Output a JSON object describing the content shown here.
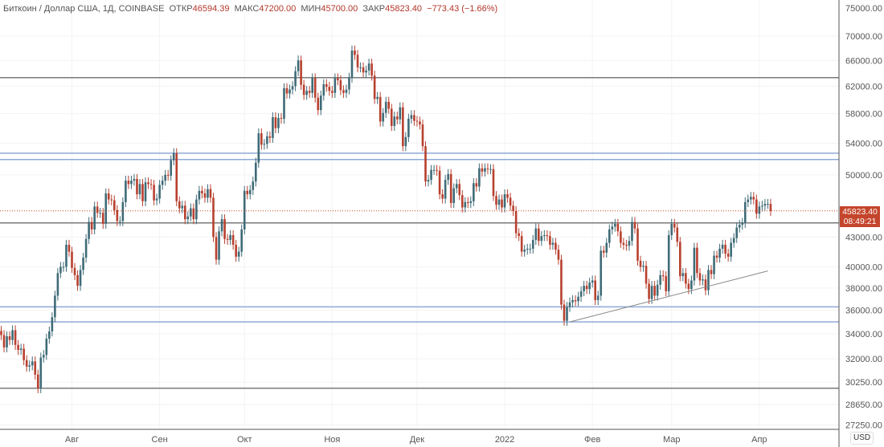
{
  "header": {
    "symbol": "Биткоин / Доллар США, 1Д, COINBASE",
    "open_label": "ОТКР",
    "open": "46594.39",
    "high_label": "МАКС",
    "high": "47200.00",
    "low_label": "МИН",
    "low": "45700.00",
    "close_label": "ЗАКР",
    "close": "45823.40",
    "change": "−773.43 (−1.66%)"
  },
  "currency": "USD",
  "last_price": {
    "value": "45823.40",
    "countdown": "08:49:21"
  },
  "colors": {
    "up": "#3f6b77",
    "down": "#b8402f",
    "last": "#c4452c",
    "hline": "#7a7a7a",
    "blue": "#8fa9d6"
  },
  "chart_data": {
    "type": "candlestick",
    "scale": "log",
    "start_date": "2021-07-07",
    "interval": "1D",
    "closes_thousands": [
      33.9,
      32.9,
      33.8,
      33.5,
      34.3,
      33.1,
      32.7,
      32.8,
      31.9,
      31.4,
      31.5,
      31.8,
      30.8,
      29.8,
      32.1,
      32.3,
      33.6,
      34.2,
      35.4,
      37.3,
      39.4,
      40.0,
      40.0,
      42.2,
      41.5,
      39.9,
      39.2,
      38.2,
      39.7,
      40.9,
      42.8,
      44.6,
      43.8,
      46.3,
      45.6,
      45.6,
      44.4,
      47.8,
      47.1,
      47.0,
      45.9,
      44.7,
      44.7,
      46.8,
      49.3,
      48.9,
      49.3,
      49.5,
      47.7,
      48.9,
      46.9,
      49.1,
      48.9,
      48.8,
      47.0,
      47.2,
      48.8,
      49.3,
      50.0,
      49.9,
      51.8,
      52.7,
      46.9,
      46.1,
      46.4,
      44.9,
      45.2,
      46.1,
      44.9,
      47.1,
      48.1,
      47.8,
      47.3,
      48.3,
      47.3,
      43.0,
      40.7,
      43.6,
      44.9,
      42.8,
      42.7,
      43.2,
      42.2,
      41.0,
      41.5,
      43.8,
      48.1,
      47.7,
      48.2,
      49.2,
      51.5,
      55.3,
      53.8,
      53.9,
      54.9,
      54.7,
      57.5,
      56.0,
      57.4,
      57.3,
      61.7,
      60.9,
      61.5,
      62.0,
      64.3,
      66.0,
      62.2,
      60.7,
      61.3,
      61.0,
      63.2,
      60.3,
      58.5,
      60.6,
      62.3,
      61.9,
      61.3,
      61.0,
      63.2,
      62.9,
      61.4,
      61.0,
      61.5,
      63.3,
      67.6,
      66.9,
      64.9,
      64.9,
      64.1,
      64.4,
      65.5,
      63.6,
      60.1,
      60.4,
      56.9,
      58.1,
      59.7,
      58.7,
      56.3,
      57.6,
      57.2,
      58.9,
      53.6,
      54.8,
      57.3,
      57.8,
      57.0,
      56.9,
      56.5,
      53.6,
      49.2,
      49.4,
      50.6,
      50.6,
      50.5,
      47.7,
      47.2,
      49.4,
      50.1,
      46.7,
      48.4,
      48.9,
      47.6,
      46.2,
      46.8,
      46.7,
      46.9,
      49.0,
      48.6,
      50.8,
      50.4,
      50.8,
      50.7,
      50.7,
      47.5,
      46.5,
      47.1,
      46.2,
      47.7,
      47.3,
      46.4,
      45.8,
      43.4,
      43.1,
      41.5,
      41.7,
      41.8,
      41.8,
      42.7,
      43.9,
      42.6,
      43.1,
      43.2,
      43.1,
      42.2,
      42.4,
      41.7,
      40.7,
      36.5,
      35.1,
      36.3,
      36.7,
      36.9,
      36.8,
      37.2,
      37.7,
      38.2,
      37.9,
      38.5,
      38.7,
      36.9,
      37.3,
      41.6,
      41.4,
      42.4,
      43.8,
      44.1,
      44.4,
      43.6,
      42.4,
      42.2,
      42.1,
      42.6,
      44.6,
      43.9,
      40.6,
      40.0,
      40.1,
      38.4,
      37.0,
      38.2,
      37.3,
      38.3,
      39.2,
      39.1,
      37.7,
      43.2,
      44.4,
      44.0,
      42.5,
      39.1,
      39.4,
      38.4,
      37.9,
      38.7,
      41.9,
      39.4,
      38.7,
      38.8,
      37.8,
      39.7,
      39.3,
      41.1,
      40.9,
      41.8,
      42.2,
      41.3,
      41.0,
      42.4,
      42.9,
      44.0,
      44.3,
      44.5,
      46.8,
      47.1,
      47.4,
      47.1,
      45.5,
      46.3,
      46.4,
      46.6,
      46.6,
      45.8
    ],
    "price_ticks": [
      "70000.00",
      "66000.00",
      "62000.00",
      "58000.00",
      "54000.00",
      "50000.00",
      "43000.00",
      "40000.00",
      "38000.00",
      "36000.00",
      "34000.00",
      "32000.00",
      "30250.00",
      "28650.00",
      "27250.00"
    ],
    "top_tick_partial": "75000.00",
    "time_ticks": [
      {
        "label": "Авг",
        "day": 25
      },
      {
        "label": "Сен",
        "day": 56
      },
      {
        "label": "Окт",
        "day": 86
      },
      {
        "label": "Ноя",
        "day": 117
      },
      {
        "label": "Дек",
        "day": 147
      },
      {
        "label": "2022",
        "day": 178
      },
      {
        "label": "Фев",
        "day": 209
      },
      {
        "label": "Мар",
        "day": 237
      },
      {
        "label": "Апр",
        "day": 268
      }
    ],
    "horizontal_levels_gray": [
      63300,
      44500,
      29800
    ],
    "horizontal_levels_blue": [
      52700,
      51900,
      36300,
      35000
    ],
    "trendline": {
      "from": {
        "day": 201,
        "price": 35000
      },
      "to": {
        "day": 271,
        "price": 39600
      }
    }
  }
}
